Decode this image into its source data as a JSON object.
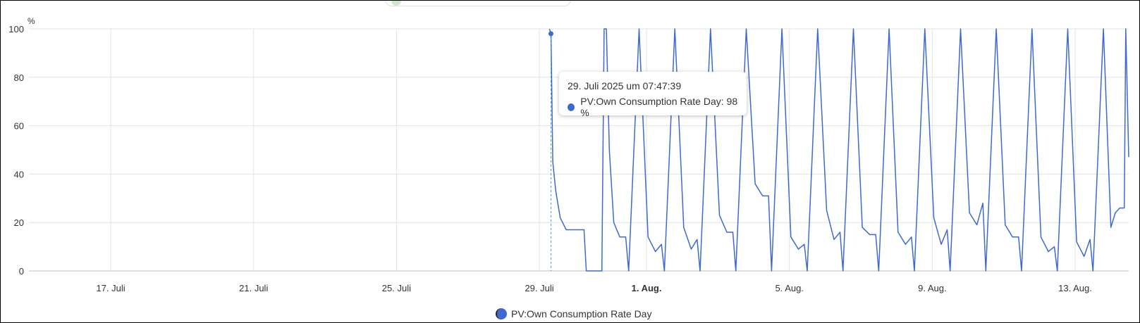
{
  "chart_data": {
    "type": "line",
    "ylabel": "%",
    "ylim": [
      0,
      100
    ],
    "yticks": [
      0,
      20,
      40,
      60,
      80,
      100
    ],
    "xlim": [
      "2025-07-14T17:00",
      "2025-08-14T12:00"
    ],
    "xticks": [
      {
        "date": "2025-07-17",
        "label": "17. Juli",
        "bold": false
      },
      {
        "date": "2025-07-21",
        "label": "21. Juli",
        "bold": false
      },
      {
        "date": "2025-07-25",
        "label": "25. Juli",
        "bold": false
      },
      {
        "date": "2025-07-29",
        "label": "29. Juli",
        "bold": false
      },
      {
        "date": "2025-08-01",
        "label": "1. Aug.",
        "bold": true
      },
      {
        "date": "2025-08-05",
        "label": "5. Aug.",
        "bold": false
      },
      {
        "date": "2025-08-09",
        "label": "9. Aug.",
        "bold": false
      },
      {
        "date": "2025-08-13",
        "label": "13. Aug.",
        "bold": false
      }
    ],
    "grid": true,
    "legend_position": "bottom",
    "series": [
      {
        "name": "PV:Own Consumption Rate Day",
        "color": "#3f69cf",
        "points": [
          [
            "2025-07-29T06:45",
            100
          ],
          [
            "2025-07-29T07:47",
            98
          ],
          [
            "2025-07-29T09:00",
            45
          ],
          [
            "2025-07-29T11:00",
            33
          ],
          [
            "2025-07-29T14:00",
            22
          ],
          [
            "2025-07-29T18:00",
            17
          ],
          [
            "2025-07-30T00:00",
            17
          ],
          [
            "2025-07-30T06:00",
            17
          ],
          [
            "2025-07-30T07:30",
            0
          ],
          [
            "2025-07-30T18:00",
            0
          ],
          [
            "2025-07-30T19:30",
            100
          ],
          [
            "2025-07-30T21:00",
            100
          ],
          [
            "2025-07-30T23:00",
            50
          ],
          [
            "2025-07-31T02:00",
            20
          ],
          [
            "2025-07-31T06:00",
            14
          ],
          [
            "2025-07-31T10:00",
            14
          ],
          [
            "2025-07-31T12:00",
            0
          ],
          [
            "2025-07-31T19:00",
            100
          ],
          [
            "2025-08-01T01:00",
            14
          ],
          [
            "2025-08-01T06:00",
            8
          ],
          [
            "2025-08-01T10:00",
            11
          ],
          [
            "2025-08-01T12:00",
            0
          ],
          [
            "2025-08-01T19:00",
            100
          ],
          [
            "2025-08-02T01:00",
            18
          ],
          [
            "2025-08-02T06:00",
            9
          ],
          [
            "2025-08-02T10:00",
            13
          ],
          [
            "2025-08-02T12:00",
            0
          ],
          [
            "2025-08-02T19:00",
            100
          ],
          [
            "2025-08-03T01:00",
            23
          ],
          [
            "2025-08-03T06:00",
            16
          ],
          [
            "2025-08-03T10:00",
            16
          ],
          [
            "2025-08-03T12:00",
            0
          ],
          [
            "2025-08-03T19:00",
            100
          ],
          [
            "2025-08-04T01:00",
            36
          ],
          [
            "2025-08-04T06:00",
            31
          ],
          [
            "2025-08-04T10:00",
            31
          ],
          [
            "2025-08-04T12:00",
            0
          ],
          [
            "2025-08-04T19:00",
            100
          ],
          [
            "2025-08-05T01:00",
            14
          ],
          [
            "2025-08-05T06:00",
            9
          ],
          [
            "2025-08-05T10:00",
            11
          ],
          [
            "2025-08-05T12:00",
            0
          ],
          [
            "2025-08-05T19:00",
            100
          ],
          [
            "2025-08-06T01:00",
            25
          ],
          [
            "2025-08-06T06:00",
            13
          ],
          [
            "2025-08-06T10:00",
            16
          ],
          [
            "2025-08-06T12:00",
            0
          ],
          [
            "2025-08-06T19:00",
            100
          ],
          [
            "2025-08-07T01:00",
            18
          ],
          [
            "2025-08-07T06:00",
            15
          ],
          [
            "2025-08-07T10:00",
            15
          ],
          [
            "2025-08-07T12:00",
            0
          ],
          [
            "2025-08-07T19:00",
            100
          ],
          [
            "2025-08-08T01:00",
            16
          ],
          [
            "2025-08-08T06:00",
            11
          ],
          [
            "2025-08-08T10:00",
            14
          ],
          [
            "2025-08-08T12:00",
            0
          ],
          [
            "2025-08-08T19:00",
            100
          ],
          [
            "2025-08-09T01:00",
            22
          ],
          [
            "2025-08-09T06:00",
            11
          ],
          [
            "2025-08-09T10:00",
            17
          ],
          [
            "2025-08-09T12:00",
            0
          ],
          [
            "2025-08-09T19:00",
            100
          ],
          [
            "2025-08-10T01:00",
            24
          ],
          [
            "2025-08-10T06:00",
            19
          ],
          [
            "2025-08-10T10:00",
            28
          ],
          [
            "2025-08-10T12:00",
            0
          ],
          [
            "2025-08-10T19:00",
            100
          ],
          [
            "2025-08-11T01:00",
            19
          ],
          [
            "2025-08-11T06:00",
            14
          ],
          [
            "2025-08-11T10:00",
            14
          ],
          [
            "2025-08-11T12:00",
            0
          ],
          [
            "2025-08-11T19:00",
            100
          ],
          [
            "2025-08-12T01:00",
            14
          ],
          [
            "2025-08-12T06:00",
            8
          ],
          [
            "2025-08-12T10:00",
            10
          ],
          [
            "2025-08-12T12:00",
            0
          ],
          [
            "2025-08-12T19:00",
            100
          ],
          [
            "2025-08-13T01:00",
            12
          ],
          [
            "2025-08-13T06:00",
            6
          ],
          [
            "2025-08-13T10:00",
            13
          ],
          [
            "2025-08-13T12:00",
            0
          ],
          [
            "2025-08-13T19:00",
            100
          ],
          [
            "2025-08-14T00:00",
            18
          ],
          [
            "2025-08-14T03:00",
            24
          ],
          [
            "2025-08-14T06:00",
            26
          ],
          [
            "2025-08-14T09:00",
            26
          ],
          [
            "2025-08-14T10:00",
            100
          ],
          [
            "2025-08-14T12:00",
            47
          ]
        ]
      }
    ]
  },
  "tooltip": {
    "timestamp": "29. Juli 2025 um 07:47:39",
    "text": "PV:Own Consumption Rate Day: 98 %",
    "x": "2025-07-29T07:47",
    "y": 98
  },
  "legend": {
    "label": "PV:Own Consumption Rate Day",
    "icon": "circle-legend-icon",
    "color": "#3f69cf"
  }
}
